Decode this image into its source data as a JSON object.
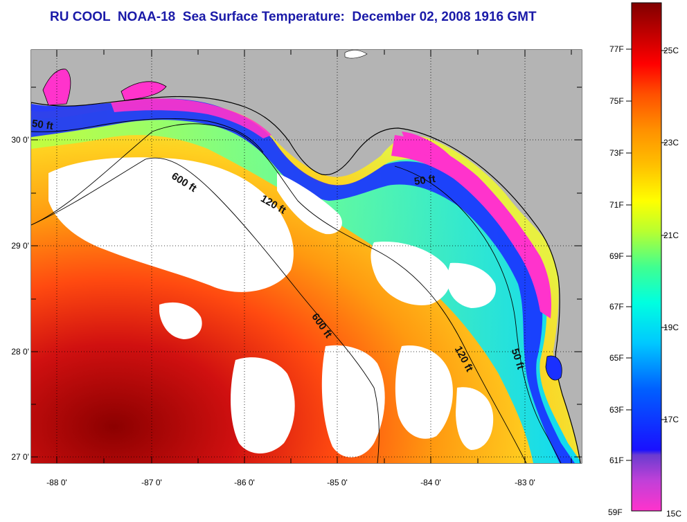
{
  "title": "RU COOL  NOAA-18  Sea Surface Temperature:  December 02, 2008 1916 GMT",
  "map": {
    "lon_ticks": [
      "-88 0'",
      "-87 0'",
      "-86 0'",
      "-85 0'",
      "-84 0'",
      "-83 0'"
    ],
    "lat_ticks": [
      "30 0'",
      "29 0'",
      "28 0'",
      "27 0'"
    ],
    "contour_labels": [
      "50 ft",
      "600 ft",
      "120 ft",
      "50 ft",
      "600 ft",
      "120 ft",
      "50 ft"
    ],
    "land_color": "#b4b4b4",
    "cloud_color": "#ffffff"
  },
  "colorbar": {
    "fahrenheit": [
      "77F",
      "75F",
      "73F",
      "71F",
      "69F",
      "67F",
      "65F",
      "63F",
      "61F",
      "59F"
    ],
    "celsius": [
      "25C",
      "23C",
      "21C",
      "19C",
      "17C",
      "15C"
    ]
  }
}
